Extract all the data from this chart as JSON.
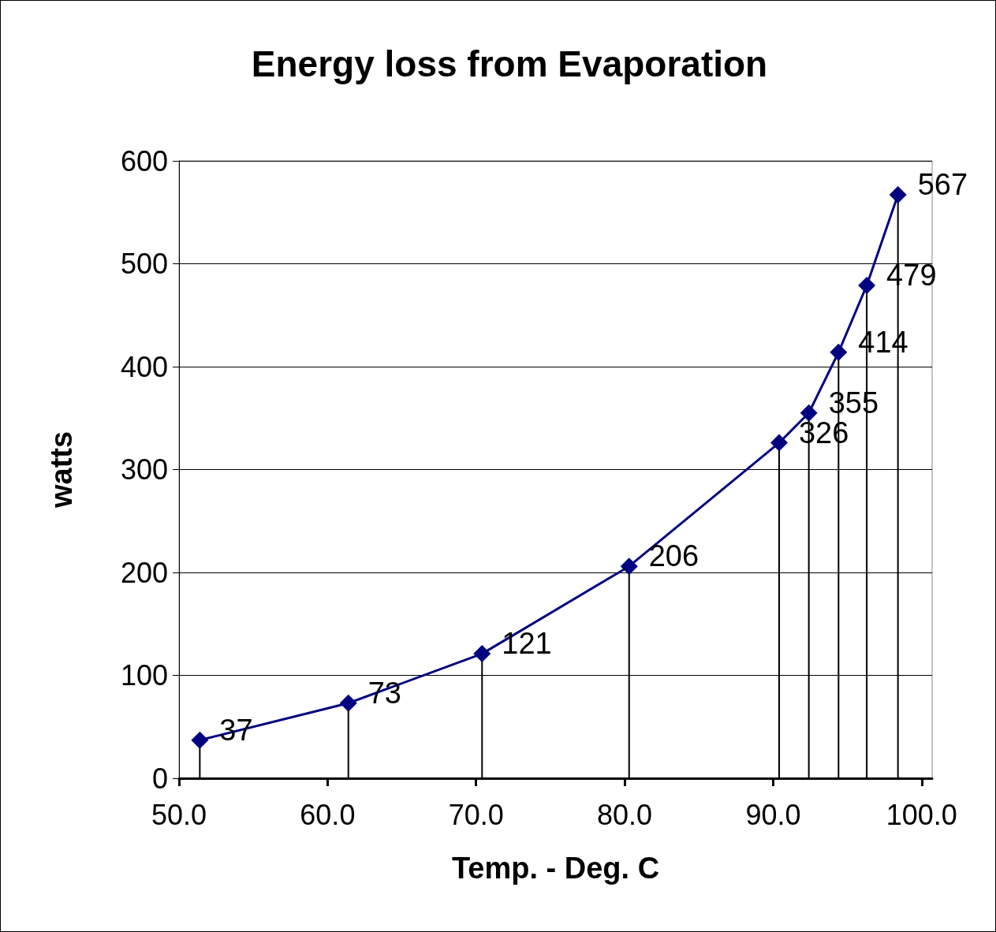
{
  "chart_data": {
    "type": "line",
    "title": "Energy loss from Evaporation",
    "xlabel": "Temp. - Deg. C",
    "ylabel": "watts",
    "x": [
      51.4,
      61.4,
      70.4,
      80.3,
      90.4,
      92.4,
      94.4,
      96.3,
      98.4
    ],
    "series": [
      {
        "color": "#000080",
        "values": [
          37,
          73,
          121,
          206,
          326,
          355,
          414,
          479,
          567
        ],
        "errors": [
          [
            37,
            0
          ],
          [
            73,
            0
          ],
          [
            121,
            0
          ],
          [
            206,
            0
          ],
          [
            326,
            0
          ],
          [
            355,
            0
          ],
          [
            414,
            0
          ],
          [
            479,
            0
          ],
          [
            567,
            0
          ]
        ]
      }
    ],
    "xlim": [
      50,
      100.7
    ],
    "xticks": [
      {
        "value": 50,
        "label": "50.0"
      },
      {
        "value": 60,
        "label": "60.0"
      },
      {
        "value": 70,
        "label": "70.0"
      },
      {
        "value": 80,
        "label": "80.0"
      },
      {
        "value": 90,
        "label": "90.0"
      },
      {
        "value": 100,
        "label": "100.0"
      }
    ],
    "ylim": [
      0,
      600
    ],
    "yticks": [
      0,
      100,
      200,
      300,
      400,
      500,
      600
    ],
    "grid": "y",
    "marker": "diamond",
    "line_style": "solid",
    "data_labels": true
  }
}
